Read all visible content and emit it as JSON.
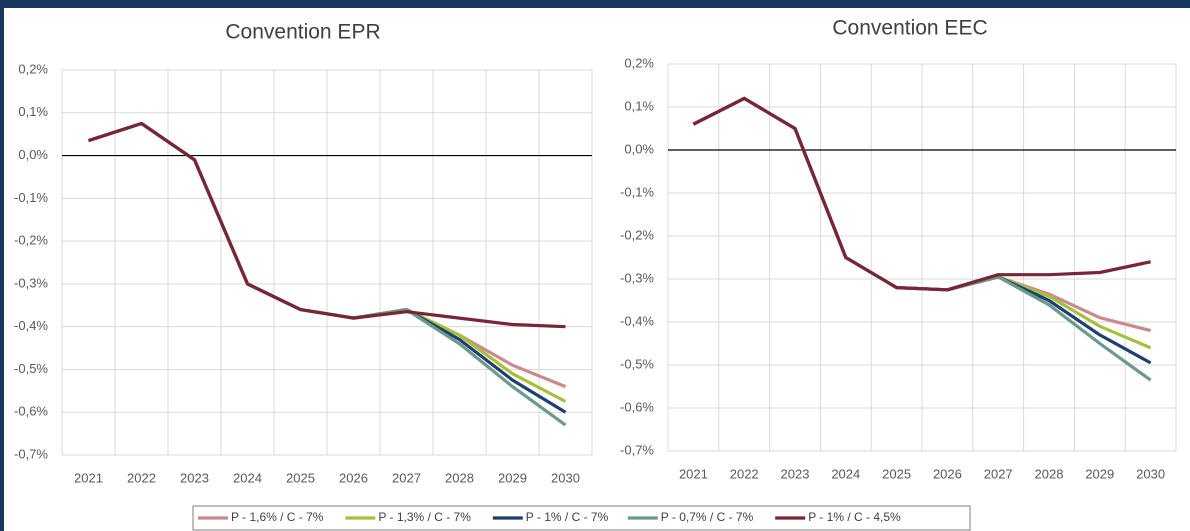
{
  "legend": [
    {
      "name": "P - 1,6% / C - 7%",
      "color": "#c98a8e"
    },
    {
      "name": "P - 1,3% / C - 7%",
      "color": "#a6c03a"
    },
    {
      "name": "P - 1% / C - 7%",
      "color": "#1f3f6e"
    },
    {
      "name": "P - 0,7% / C - 7%",
      "color": "#6b9a8a"
    },
    {
      "name": "P - 1% / C - 4,5%",
      "color": "#7a2535"
    }
  ],
  "chart_data": [
    {
      "type": "line",
      "title": "Convention EPR",
      "categories": [
        "2021",
        "2022",
        "2023",
        "2024",
        "2025",
        "2026",
        "2027",
        "2028",
        "2029",
        "2030"
      ],
      "series": [
        {
          "values": [
            0.035,
            0.075,
            -0.01,
            -0.3,
            -0.36,
            -0.38,
            -0.36,
            -0.42,
            -0.49,
            -0.54
          ]
        },
        {
          "values": [
            0.035,
            0.075,
            -0.01,
            -0.3,
            -0.36,
            -0.38,
            -0.36,
            -0.42,
            -0.51,
            -0.575
          ]
        },
        {
          "values": [
            0.035,
            0.075,
            -0.01,
            -0.3,
            -0.36,
            -0.38,
            -0.36,
            -0.43,
            -0.525,
            -0.6
          ]
        },
        {
          "values": [
            0.035,
            0.075,
            -0.01,
            -0.3,
            -0.36,
            -0.38,
            -0.36,
            -0.44,
            -0.54,
            -0.63
          ]
        },
        {
          "values": [
            0.035,
            0.075,
            -0.01,
            -0.3,
            -0.36,
            -0.38,
            -0.365,
            -0.38,
            -0.395,
            -0.4
          ]
        }
      ],
      "ylim": [
        -0.7,
        0.2
      ],
      "yticks": [
        {
          "value": 0.2,
          "label": "0,2%"
        },
        {
          "value": 0.1,
          "label": "0,1%"
        },
        {
          "value": 0,
          "label": "0,0%"
        },
        {
          "value": -0.1,
          "label": "-0,1%"
        },
        {
          "value": -0.2,
          "label": "-0,2%"
        },
        {
          "value": -0.3,
          "label": "-0,3%"
        },
        {
          "value": -0.4,
          "label": "-0,4%"
        },
        {
          "value": -0.5,
          "label": "-0,5%"
        },
        {
          "value": -0.6,
          "label": "-0,6%"
        },
        {
          "value": -0.7,
          "label": "-0,7%"
        }
      ],
      "grid": true
    },
    {
      "type": "line",
      "title": "Convention EEC",
      "categories": [
        "2021",
        "2022",
        "2023",
        "2024",
        "2025",
        "2026",
        "2027",
        "2028",
        "2029",
        "2030"
      ],
      "series": [
        {
          "values": [
            0.06,
            0.12,
            0.05,
            -0.25,
            -0.32,
            -0.325,
            -0.295,
            -0.335,
            -0.39,
            -0.42
          ]
        },
        {
          "values": [
            0.06,
            0.12,
            0.05,
            -0.25,
            -0.32,
            -0.325,
            -0.295,
            -0.34,
            -0.41,
            -0.46
          ]
        },
        {
          "values": [
            0.06,
            0.12,
            0.05,
            -0.25,
            -0.32,
            -0.325,
            -0.295,
            -0.35,
            -0.43,
            -0.495
          ]
        },
        {
          "values": [
            0.06,
            0.12,
            0.05,
            -0.25,
            -0.32,
            -0.325,
            -0.295,
            -0.36,
            -0.45,
            -0.535
          ]
        },
        {
          "values": [
            0.06,
            0.12,
            0.05,
            -0.25,
            -0.32,
            -0.325,
            -0.29,
            -0.29,
            -0.285,
            -0.26
          ]
        }
      ],
      "ylim": [
        -0.7,
        0.2
      ],
      "yticks": [
        {
          "value": 0.2,
          "label": "0,2%"
        },
        {
          "value": 0.1,
          "label": "0,1%"
        },
        {
          "value": 0,
          "label": "0,0%"
        },
        {
          "value": -0.1,
          "label": "-0,1%"
        },
        {
          "value": -0.2,
          "label": "-0,2%"
        },
        {
          "value": -0.3,
          "label": "-0,3%"
        },
        {
          "value": -0.4,
          "label": "-0,4%"
        },
        {
          "value": -0.5,
          "label": "-0,5%"
        },
        {
          "value": -0.6,
          "label": "-0,6%"
        },
        {
          "value": -0.7,
          "label": "-0,7%"
        }
      ],
      "grid": true
    }
  ]
}
